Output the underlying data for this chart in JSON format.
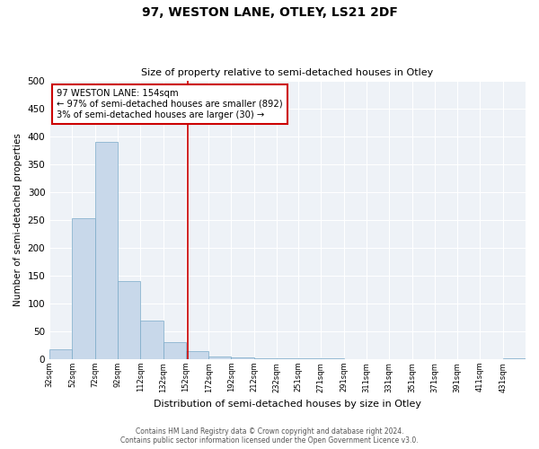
{
  "title": "97, WESTON LANE, OTLEY, LS21 2DF",
  "subtitle": "Size of property relative to semi-detached houses in Otley",
  "xlabel": "Distribution of semi-detached houses by size in Otley",
  "ylabel": "Number of semi-detached properties",
  "bar_color": "#c8d8ea",
  "bar_edge_color": "#7aaac8",
  "background_color": "#eef2f7",
  "bins": [
    32,
    52,
    72,
    92,
    112,
    132,
    152,
    172,
    192,
    212,
    232,
    251,
    271,
    291,
    311,
    331,
    351,
    371,
    391,
    411,
    431,
    451
  ],
  "bin_labels": [
    "32sqm",
    "52sqm",
    "72sqm",
    "92sqm",
    "112sqm",
    "132sqm",
    "152sqm",
    "172sqm",
    "192sqm",
    "212sqm",
    "232sqm",
    "251sqm",
    "271sqm",
    "291sqm",
    "311sqm",
    "331sqm",
    "351sqm",
    "371sqm",
    "391sqm",
    "411sqm",
    "431sqm"
  ],
  "counts": [
    18,
    253,
    390,
    140,
    70,
    30,
    15,
    5,
    3,
    2,
    1,
    1,
    1,
    0,
    0,
    0,
    0,
    0,
    0,
    0,
    2
  ],
  "property_size": 154,
  "vline_color": "#cc0000",
  "annotation_text_line1": "97 WESTON LANE: 154sqm",
  "annotation_text_line2": "← 97% of semi-detached houses are smaller (892)",
  "annotation_text_line3": "3% of semi-detached houses are larger (30) →",
  "annotation_box_color": "#cc0000",
  "ylim": [
    0,
    500
  ],
  "yticks": [
    0,
    50,
    100,
    150,
    200,
    250,
    300,
    350,
    400,
    450,
    500
  ],
  "footnote_line1": "Contains HM Land Registry data © Crown copyright and database right 2024.",
  "footnote_line2": "Contains public sector information licensed under the Open Government Licence v3.0."
}
